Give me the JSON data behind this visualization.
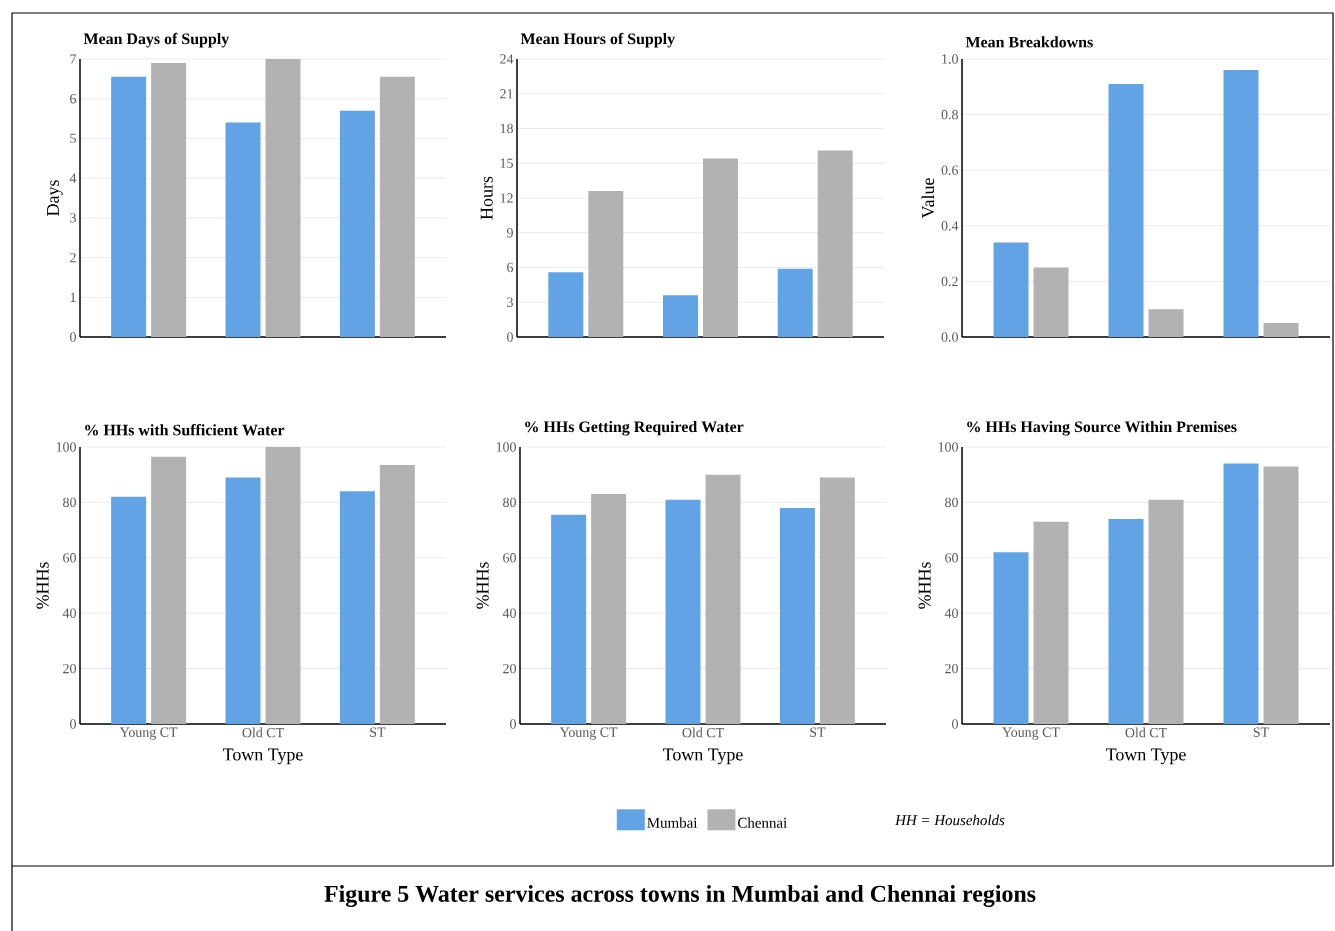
{
  "chart_data": [
    {
      "type": "bar",
      "title": "Mean Days of Supply",
      "ylabel": "Days",
      "categories": [
        null,
        null,
        null
      ],
      "tick_labels": "y",
      "series": [
        {
          "color": "#62a3e5",
          "values": [
            6.55,
            5.4,
            5.7
          ]
        },
        {
          "color": "#b2b2b2",
          "values": [
            6.9,
            7.0,
            6.55
          ]
        }
      ],
      "ylim": [
        0,
        7
      ],
      "yticks": [
        0,
        1,
        2,
        3,
        4,
        5,
        6,
        7
      ],
      "grid": "y"
    },
    {
      "type": "bar",
      "title": "Mean Hours of Supply",
      "ylabel": "Hours",
      "categories": [
        null,
        null,
        null
      ],
      "tick_labels": "y",
      "series": [
        {
          "color": "#62a3e5",
          "values": [
            5.6,
            3.6,
            5.9
          ]
        },
        {
          "color": "#b2b2b2",
          "values": [
            12.6,
            15.4,
            16.1
          ]
        }
      ],
      "ylim": [
        0,
        24
      ],
      "yticks": [
        0,
        3,
        6,
        9,
        12,
        15,
        18,
        21,
        24
      ],
      "grid": "y"
    },
    {
      "type": "bar",
      "title": "Mean Breakdowns",
      "ylabel": "Value",
      "categories": [
        null,
        null,
        null
      ],
      "tick_labels": "y",
      "series": [
        {
          "color": "#62a3e5",
          "values": [
            0.34,
            0.91,
            0.96
          ]
        },
        {
          "color": "#b2b2b2",
          "values": [
            0.25,
            0.1,
            0.05
          ]
        }
      ],
      "ylim": [
        0,
        1
      ],
      "yticks": [
        {
          "value": 0,
          "label": "0.0"
        },
        {
          "value": 0.2,
          "label": "0.2"
        },
        {
          "value": 0.4,
          "label": "0.4"
        },
        {
          "value": 0.6,
          "label": "0.6"
        },
        {
          "value": 0.8,
          "label": "0.8"
        },
        {
          "value": 1,
          "label": "1.0"
        }
      ],
      "grid": "y"
    },
    {
      "type": "bar",
      "title": "% HHs with Sufficient Water",
      "xlabel": "Town Type",
      "ylabel": "%HHs",
      "categories": [
        "Young CT",
        "Old CT",
        "ST"
      ],
      "series": [
        {
          "color": "#62a3e5",
          "values": [
            82,
            89,
            84
          ]
        },
        {
          "color": "#b2b2b2",
          "values": [
            96.5,
            100,
            93.5
          ]
        }
      ],
      "ylim": [
        0,
        100
      ],
      "yticks": [
        0,
        20,
        40,
        60,
        80,
        100
      ],
      "grid": "y"
    },
    {
      "type": "bar",
      "title": "% HHs Getting Required Water",
      "xlabel": "Town Type",
      "ylabel": "%HHs",
      "categories": [
        "Young CT",
        "Old CT",
        "ST"
      ],
      "series": [
        {
          "name": "Mumbai",
          "color": "#62a3e5",
          "values": [
            75.5,
            81,
            78
          ]
        },
        {
          "name": "Chennai",
          "color": "#b2b2b2",
          "values": [
            83,
            90,
            89
          ]
        }
      ],
      "ylim": [
        0,
        100
      ],
      "yticks": [
        0,
        20,
        40,
        60,
        80,
        100
      ],
      "grid": "y",
      "legend": "bottom",
      "annotations": [
        "Figure 5 Water services across towns in Mumbai and Chennai regions"
      ]
    },
    {
      "type": "bar",
      "title": "% HHs Having Source Within Premises",
      "xlabel": "Town Type",
      "ylabel": "%HHs",
      "categories": [
        "Young CT",
        "Old CT",
        "ST"
      ],
      "series": [
        {
          "color": "#62a3e5",
          "values": [
            62,
            74,
            94
          ]
        },
        {
          "color": "#b2b2b2",
          "values": [
            73,
            81,
            93
          ]
        }
      ],
      "ylim": [
        0,
        100
      ],
      "yticks": [
        0,
        20,
        40,
        60,
        80,
        100
      ],
      "grid": "y",
      "annotations": [
        "HH = Households"
      ]
    }
  ]
}
